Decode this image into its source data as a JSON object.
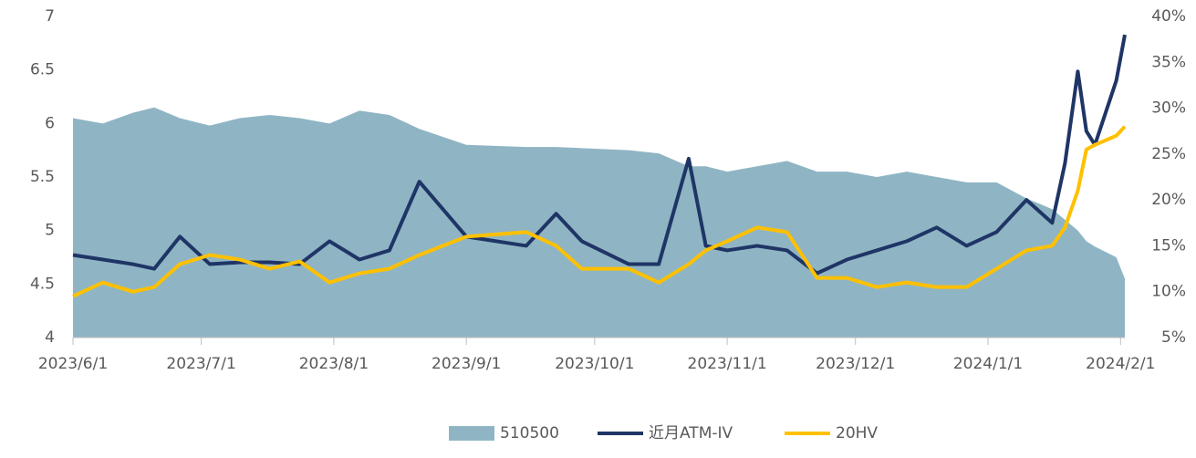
{
  "chart_data": {
    "type": "area-line",
    "x": [
      "2023/6/1",
      "2023/6/8",
      "2023/6/15",
      "2023/6/20",
      "2023/6/26",
      "2023/7/3",
      "2023/7/10",
      "2023/7/17",
      "2023/7/24",
      "2023/7/31",
      "2023/8/7",
      "2023/8/14",
      "2023/8/21",
      "2023/9/1",
      "2023/9/15",
      "2023/9/22",
      "2023/9/28",
      "2023/10/9",
      "2023/10/16",
      "2023/10/23",
      "2023/10/27",
      "2023/11/1",
      "2023/11/8",
      "2023/11/15",
      "2023/11/22",
      "2023/11/29",
      "2023/12/6",
      "2023/12/13",
      "2023/12/20",
      "2023/12/27",
      "2024/1/3",
      "2024/1/10",
      "2024/1/16",
      "2024/1/19",
      "2024/1/22",
      "2024/1/24",
      "2024/1/26",
      "2024/1/31",
      "2024/2/2"
    ],
    "series": [
      {
        "name": "510500",
        "type": "area",
        "axis": "y",
        "color": "#8fb5c4",
        "values": [
          6.05,
          6.0,
          6.1,
          6.15,
          6.05,
          5.98,
          6.05,
          6.08,
          6.05,
          6.0,
          6.12,
          6.08,
          5.95,
          5.8,
          5.78,
          5.78,
          5.77,
          5.75,
          5.72,
          5.6,
          5.6,
          5.55,
          5.6,
          5.65,
          5.55,
          5.55,
          5.5,
          5.55,
          5.5,
          5.45,
          5.45,
          5.3,
          5.2,
          5.1,
          5.0,
          4.9,
          4.85,
          4.75,
          4.55
        ]
      },
      {
        "name": "近月ATM-IV",
        "type": "line",
        "axis": "y2",
        "color": "#1f3566",
        "values": [
          14.0,
          13.5,
          13.0,
          12.5,
          16.0,
          13.0,
          13.2,
          13.2,
          13.0,
          15.5,
          13.5,
          14.5,
          22.0,
          16.0,
          15.0,
          18.5,
          15.5,
          13.0,
          13.0,
          24.5,
          15.0,
          14.5,
          15.0,
          14.5,
          12.0,
          13.5,
          14.5,
          15.5,
          17.0,
          15.0,
          16.5,
          20.0,
          17.5,
          24.0,
          34.0,
          27.5,
          26.0,
          33.0,
          38.0
        ]
      },
      {
        "name": "20HV",
        "type": "line",
        "axis": "y2",
        "color": "#ffc000",
        "values": [
          9.5,
          11.0,
          10.0,
          10.5,
          13.0,
          14.0,
          13.5,
          12.5,
          13.3,
          11.0,
          12.0,
          12.5,
          14.0,
          16.0,
          16.5,
          15.0,
          12.5,
          12.5,
          11.0,
          13.0,
          14.5,
          15.5,
          17.0,
          16.5,
          11.5,
          11.5,
          10.5,
          11.0,
          10.5,
          10.5,
          12.5,
          14.5,
          15.0,
          17.0,
          21.0,
          25.5,
          26.0,
          27.0,
          28.0
        ]
      }
    ],
    "xlim": [
      "2023/6/1",
      "2024/2/2"
    ],
    "xticks": [
      "2023/6/1",
      "2023/7/1",
      "2023/8/1",
      "2023/9/1",
      "2023/10/1",
      "2023/11/1",
      "2023/12/1",
      "2024/1/1",
      "2024/2/1"
    ],
    "ylim": [
      4,
      7
    ],
    "yticks": [
      4,
      4.5,
      5,
      5.5,
      6,
      6.5,
      7
    ],
    "y2lim": [
      5,
      40
    ],
    "y2ticks": [
      {
        "value": 5,
        "label": "5%"
      },
      {
        "value": 10,
        "label": "10%"
      },
      {
        "value": 15,
        "label": "15%"
      },
      {
        "value": 20,
        "label": "20%"
      },
      {
        "value": 25,
        "label": "25%"
      },
      {
        "value": 30,
        "label": "30%"
      },
      {
        "value": 35,
        "label": "35%"
      },
      {
        "value": 40,
        "label": "40%"
      }
    ]
  }
}
